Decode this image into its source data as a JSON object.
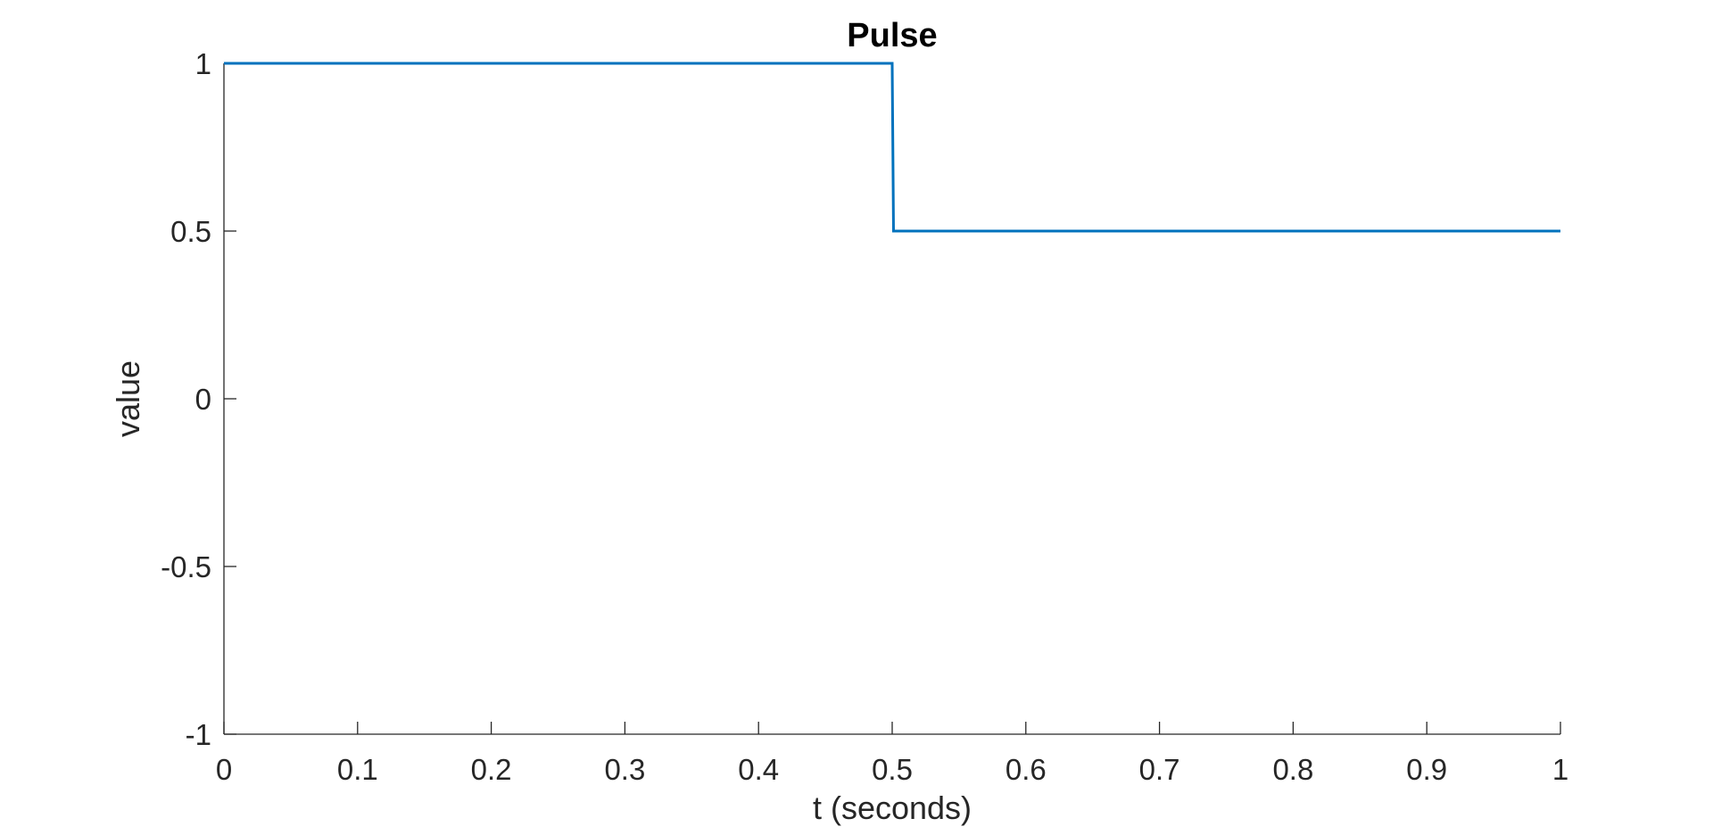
{
  "chart_data": {
    "type": "line",
    "title": "Pulse",
    "xlabel": "t (seconds)",
    "ylabel": "value",
    "xlim": [
      0,
      1
    ],
    "ylim": [
      -1,
      1
    ],
    "xticks": [
      0,
      0.1,
      0.2,
      0.3,
      0.4,
      0.5,
      0.6,
      0.7,
      0.8,
      0.9,
      1
    ],
    "xtick_labels": [
      "0",
      "0.1",
      "0.2",
      "0.3",
      "0.4",
      "0.5",
      "0.6",
      "0.7",
      "0.8",
      "0.9",
      "1"
    ],
    "yticks": [
      -1,
      -0.5,
      0,
      0.5,
      1
    ],
    "ytick_labels": [
      "-1",
      "-0.5",
      "0",
      "0.5",
      "1"
    ],
    "grid": false,
    "series": [
      {
        "color": "#0072BD",
        "x": [
          0,
          0.5,
          0.501,
          1
        ],
        "y": [
          1,
          1,
          0.5,
          0.5
        ]
      }
    ]
  }
}
